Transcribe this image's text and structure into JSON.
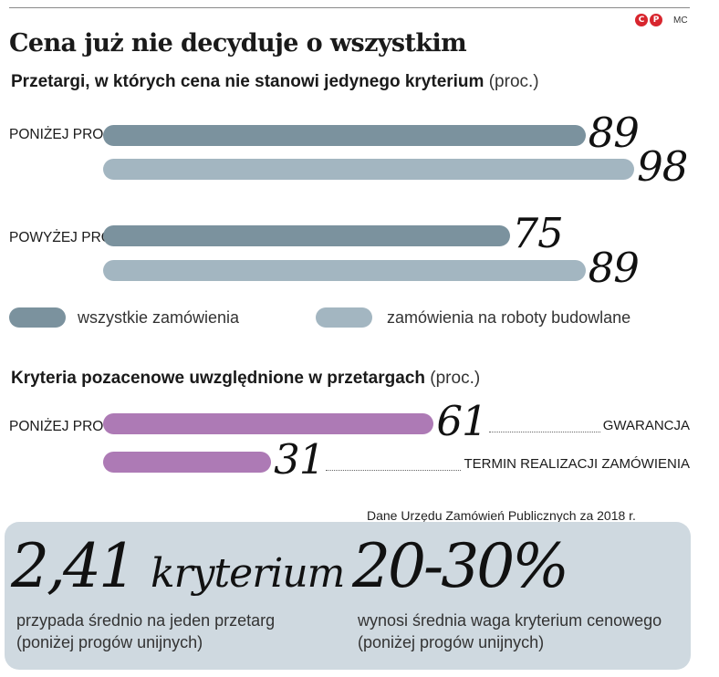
{
  "header": {
    "title": "Cena już nie decyduje o wszystkim",
    "copyright_c": "C",
    "copyright_p": "P",
    "author": "MC"
  },
  "colors": {
    "all_orders": "#7b929e",
    "construction": "#a3b6c1",
    "criteria": "#ad7ab5",
    "panel": "#cfd9e0"
  },
  "chart_data": [
    {
      "type": "bar",
      "orientation": "horizontal",
      "title": "Przetargi, w których cena nie stanowi jedynego kryterium",
      "unit": "(proc.)",
      "categories": [
        "PONIŻEJ PROGÓW UNIJNYCH",
        "POWYŻEJ PROGÓW UNIJNYCH"
      ],
      "series": [
        {
          "name": "wszystkie zamówienia",
          "values": [
            89,
            75
          ]
        },
        {
          "name": "zamówienia na roboty budowlane",
          "values": [
            98,
            89
          ]
        }
      ],
      "legend": "bottom"
    },
    {
      "type": "bar",
      "orientation": "horizontal",
      "title": "Kryteria pozacenowe uwzględnione w przetargach",
      "unit": "(proc.)",
      "group": "PONIŻEJ PROGÓW UNIJNYCH",
      "categories": [
        "GWARANCJA",
        "TERMIN REALIZACJI ZAMÓWIENIA"
      ],
      "values": [
        61,
        31
      ]
    }
  ],
  "source": "Dane Urzędu Zamówień Publicznych za 2018 r.",
  "facts": {
    "left_value": "2,41",
    "left_word": "kryterium",
    "left_note": "przypada średnio na jeden przetarg (poniżej progów unijnych)",
    "right_value": "20-30%",
    "right_note": "wynosi średnia waga kryterium cenowego (poniżej progów unijnych)"
  }
}
